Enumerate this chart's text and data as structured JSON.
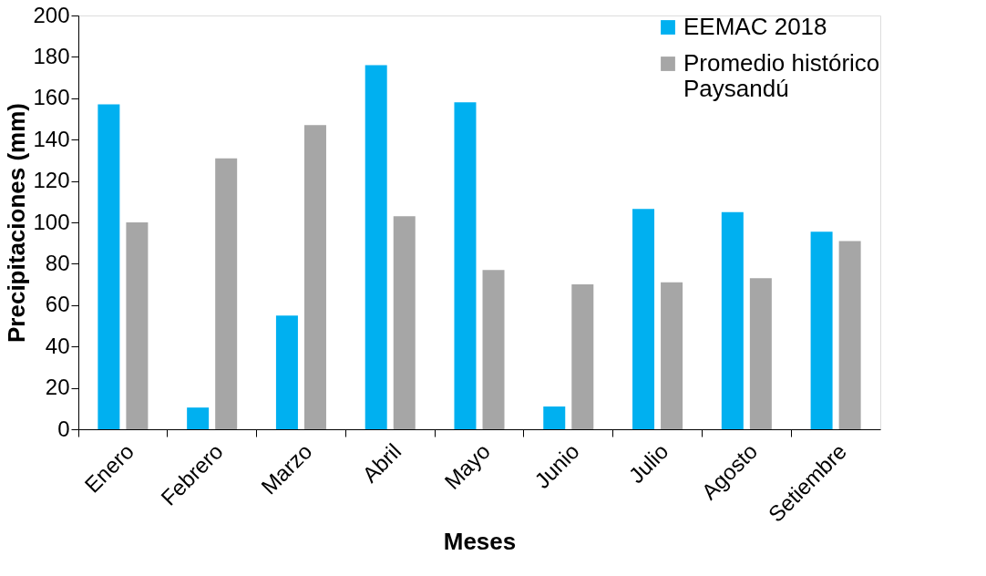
{
  "chart_data": {
    "type": "bar",
    "xlabel": "Meses",
    "ylabel": "Precipitaciones (mm)",
    "categories": [
      "Enero",
      "Febrero",
      "Marzo",
      "Abril",
      "Mayo",
      "Junio",
      "Julio",
      "Agosto",
      "Setiembre"
    ],
    "series": [
      {
        "name": "EEMAC 2018",
        "color": "#00b0f0",
        "values": [
          157,
          10.5,
          55,
          176,
          158,
          11,
          106.5,
          105,
          95.5
        ]
      },
      {
        "name": "Promedio histórico\nPaysandú",
        "color": "#a6a6a6",
        "values": [
          100,
          131,
          147,
          103,
          77,
          70,
          71,
          73,
          91
        ]
      }
    ],
    "ylim": [
      0,
      200
    ],
    "yticks": [
      0,
      20,
      40,
      60,
      80,
      100,
      120,
      140,
      160,
      180,
      200
    ],
    "grid": false,
    "legend": "top right"
  }
}
